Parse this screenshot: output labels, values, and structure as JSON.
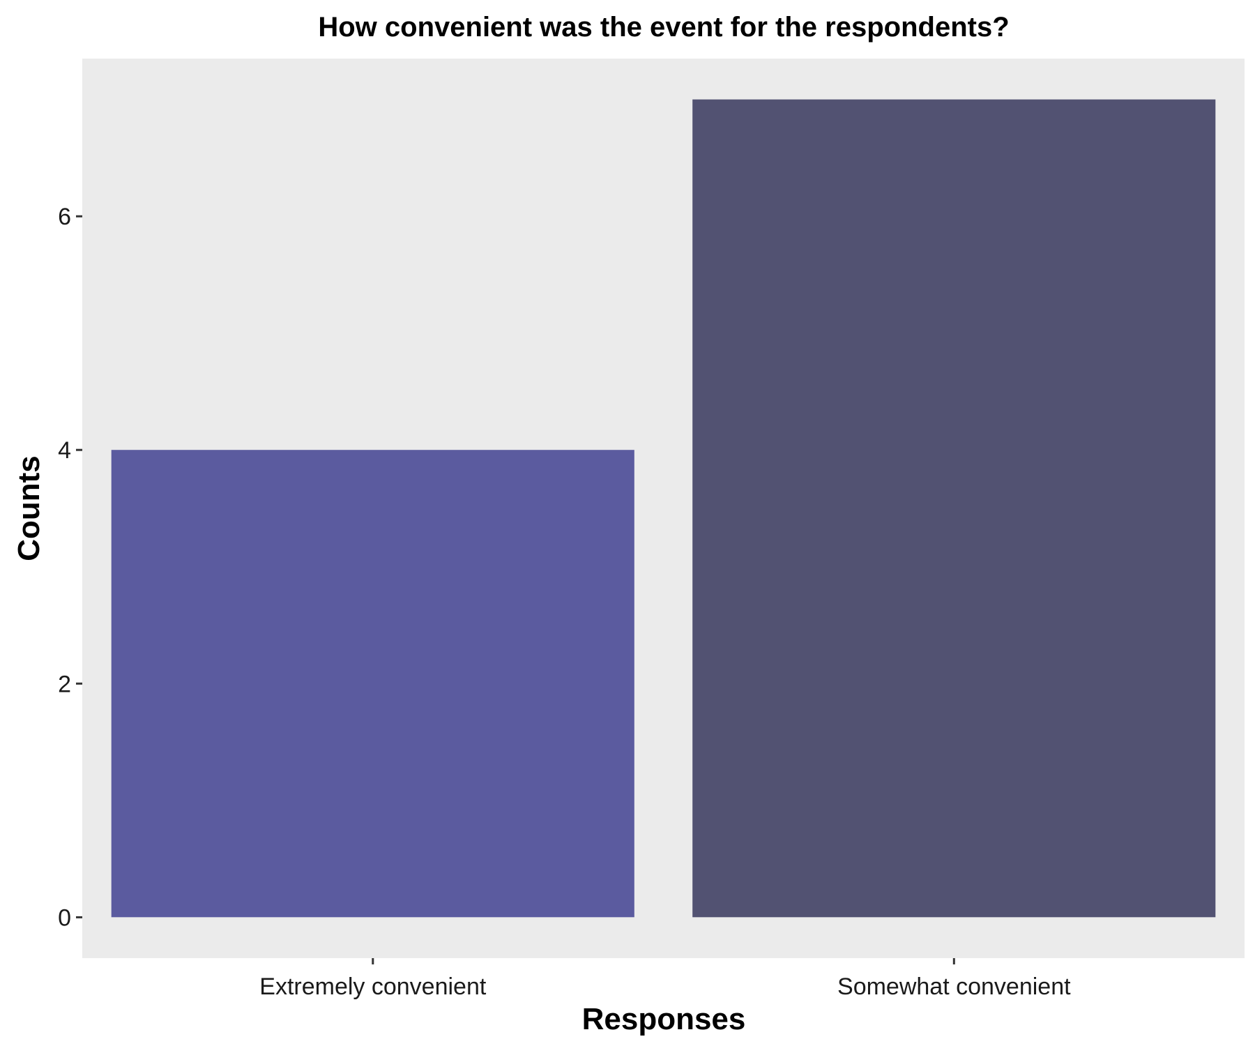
{
  "chart_data": {
    "type": "bar",
    "title": "How convenient was the event for the respondents?",
    "xlabel": "Responses",
    "ylabel": "Counts",
    "categories": [
      "Extremely convenient",
      "Somewhat convenient"
    ],
    "values": [
      4,
      7
    ],
    "ylim": [
      -0.35,
      7.35
    ],
    "yticks": [
      0,
      2,
      4,
      6
    ],
    "grid": false,
    "panel_background": "#EBEBEB",
    "bar_colors": [
      "#5B5B9F",
      "#525272"
    ]
  }
}
